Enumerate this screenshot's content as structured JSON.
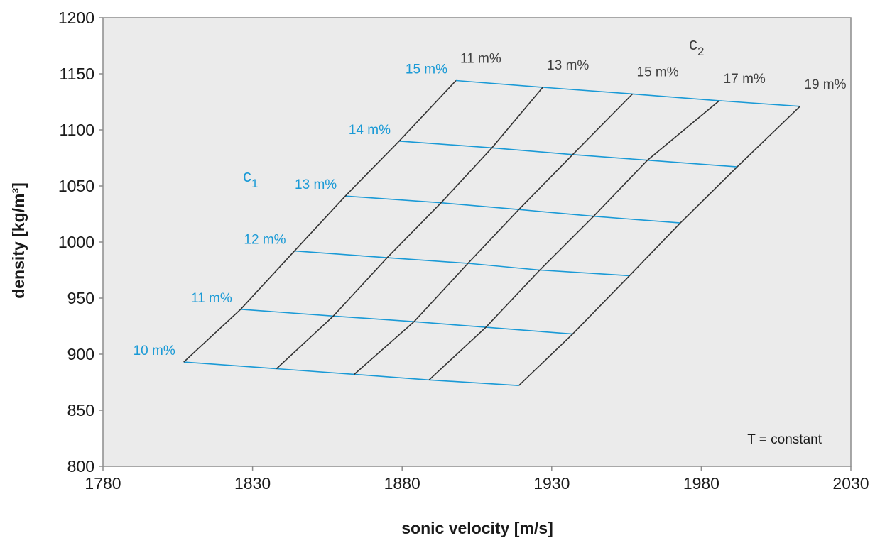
{
  "chart_data": {
    "type": "line",
    "title": "",
    "xlabel": "sonic velocity [m/s]",
    "ylabel": "density [kg/m³]",
    "xlim": [
      1780,
      2030
    ],
    "ylim": [
      800,
      1200
    ],
    "xticks": [
      1780,
      1830,
      1880,
      1930,
      1980,
      2030
    ],
    "yticks": [
      800,
      850,
      900,
      950,
      1000,
      1050,
      1100,
      1150,
      1200
    ],
    "grid": false,
    "annotation": "T = constant",
    "c1": {
      "name": "c",
      "subscript": "1",
      "color": "#1a9ad6",
      "lines": [
        {
          "label": "10 m%",
          "points": [
            [
              1807,
              893
            ],
            [
              1838,
              887
            ],
            [
              1864,
              882
            ],
            [
              1889,
              877
            ],
            [
              1919,
              872
            ]
          ]
        },
        {
          "label": "11 m%",
          "points": [
            [
              1826,
              940
            ],
            [
              1857,
              934
            ],
            [
              1884,
              929
            ],
            [
              1908,
              924
            ],
            [
              1937,
              918
            ]
          ]
        },
        {
          "label": "12 m%",
          "points": [
            [
              1844,
              992
            ],
            [
              1875,
              986
            ],
            [
              1902,
              981
            ],
            [
              1926,
              975
            ],
            [
              1956,
              970
            ]
          ]
        },
        {
          "label": "13 m%",
          "points": [
            [
              1861,
              1041
            ],
            [
              1893,
              1035
            ],
            [
              1919,
              1029
            ],
            [
              1944,
              1023
            ],
            [
              1973,
              1017
            ]
          ]
        },
        {
          "label": "14 m%",
          "points": [
            [
              1879,
              1090
            ],
            [
              1910,
              1084
            ],
            [
              1937,
              1078
            ],
            [
              1962,
              1073
            ],
            [
              1992,
              1067
            ]
          ]
        },
        {
          "label": "15 m%",
          "points": [
            [
              1898,
              1144
            ],
            [
              1927,
              1138
            ],
            [
              1957,
              1132
            ],
            [
              1986,
              1126
            ],
            [
              2013,
              1121
            ]
          ]
        }
      ]
    },
    "c2": {
      "name": "c",
      "subscript": "2",
      "color": "#333333",
      "lines": [
        {
          "label": "11 m%",
          "points": [
            [
              1807,
              893
            ],
            [
              1826,
              940
            ],
            [
              1844,
              992
            ],
            [
              1861,
              1041
            ],
            [
              1879,
              1090
            ],
            [
              1898,
              1144
            ]
          ]
        },
        {
          "label": "13 m%",
          "points": [
            [
              1838,
              887
            ],
            [
              1857,
              934
            ],
            [
              1875,
              986
            ],
            [
              1893,
              1035
            ],
            [
              1910,
              1084
            ],
            [
              1927,
              1138
            ]
          ]
        },
        {
          "label": "15 m%",
          "points": [
            [
              1864,
              882
            ],
            [
              1884,
              929
            ],
            [
              1902,
              981
            ],
            [
              1919,
              1029
            ],
            [
              1937,
              1078
            ],
            [
              1957,
              1132
            ]
          ]
        },
        {
          "label": "17 m%",
          "points": [
            [
              1889,
              877
            ],
            [
              1908,
              924
            ],
            [
              1926,
              975
            ],
            [
              1944,
              1023
            ],
            [
              1962,
              1073
            ],
            [
              1986,
              1126
            ]
          ]
        },
        {
          "label": "19 m%",
          "points": [
            [
              1919,
              872
            ],
            [
              1937,
              918
            ],
            [
              1956,
              970
            ],
            [
              1973,
              1017
            ],
            [
              1992,
              1067
            ],
            [
              2013,
              1121
            ]
          ]
        }
      ]
    }
  },
  "colors": {
    "plot_background": "#ebebeb",
    "frame": "#8c8c8c"
  }
}
